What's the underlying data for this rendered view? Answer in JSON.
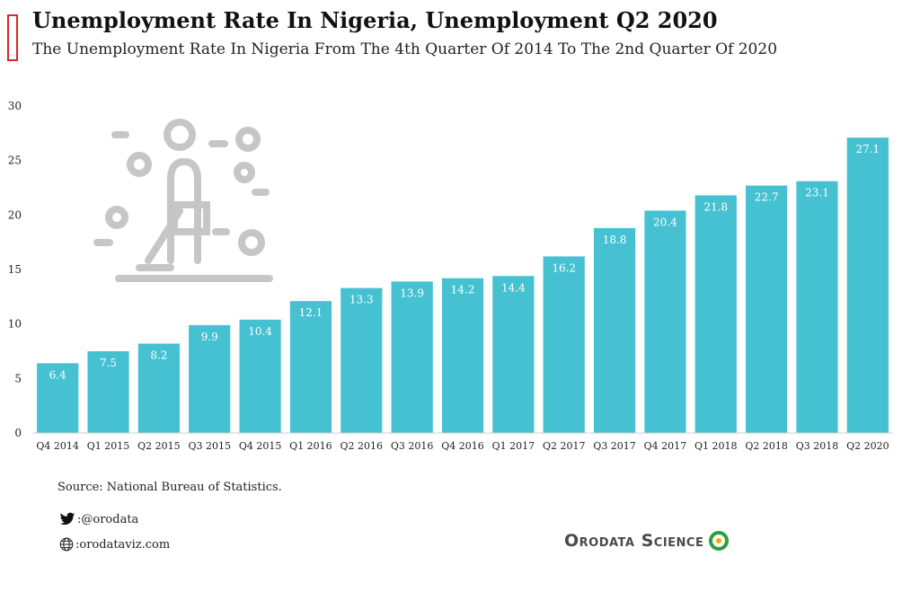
{
  "header": {
    "title": "Unemployment Rate In Nigeria, Unemployment Q2 2020",
    "subtitle": "The Unemployment Rate In Nigeria From The 4th Quarter Of 2014 To The 2nd Quarter Of 2020"
  },
  "chart_data": {
    "type": "bar",
    "categories": [
      "Q4 2014",
      "Q1 2015",
      "Q2 2015",
      "Q3 2015",
      "Q4 2015",
      "Q1 2016",
      "Q2 2016",
      "Q3 2016",
      "Q4 2016",
      "Q1 2017",
      "Q2 2017",
      "Q3 2017",
      "Q4 2017",
      "Q1 2018",
      "Q2 2018",
      "Q3 2018",
      "Q2 2020"
    ],
    "values": [
      6.4,
      7.5,
      8.2,
      9.9,
      10.4,
      12.1,
      13.3,
      13.9,
      14.2,
      14.4,
      16.2,
      18.8,
      20.4,
      21.8,
      22.7,
      23.1,
      27.1
    ],
    "value_labels": [
      "6.4",
      "7.5",
      "8.2",
      "9.9",
      "10.4",
      "12.1",
      "13.3",
      "13.9",
      "14.2",
      "14.4",
      "16.2",
      "18.8",
      "20.4",
      "21.8",
      "22.7",
      "23.1",
      "27.1"
    ],
    "yticks": [
      "0",
      "5",
      "10",
      "15",
      "20",
      "25",
      "30"
    ],
    "ylim": [
      0,
      30
    ],
    "grid": false,
    "legend": "none",
    "bar_color": "#45c1d1",
    "label_color": "#ffffff",
    "icon": "unemployed-person-sweeping-icon"
  },
  "footer": {
    "source": "Source: National Bureau of Statistics.",
    "twitter": ":@orodata",
    "website": ":orodataviz.com",
    "brand": "Orodata Science",
    "brand_color": "#2e9e3e"
  }
}
